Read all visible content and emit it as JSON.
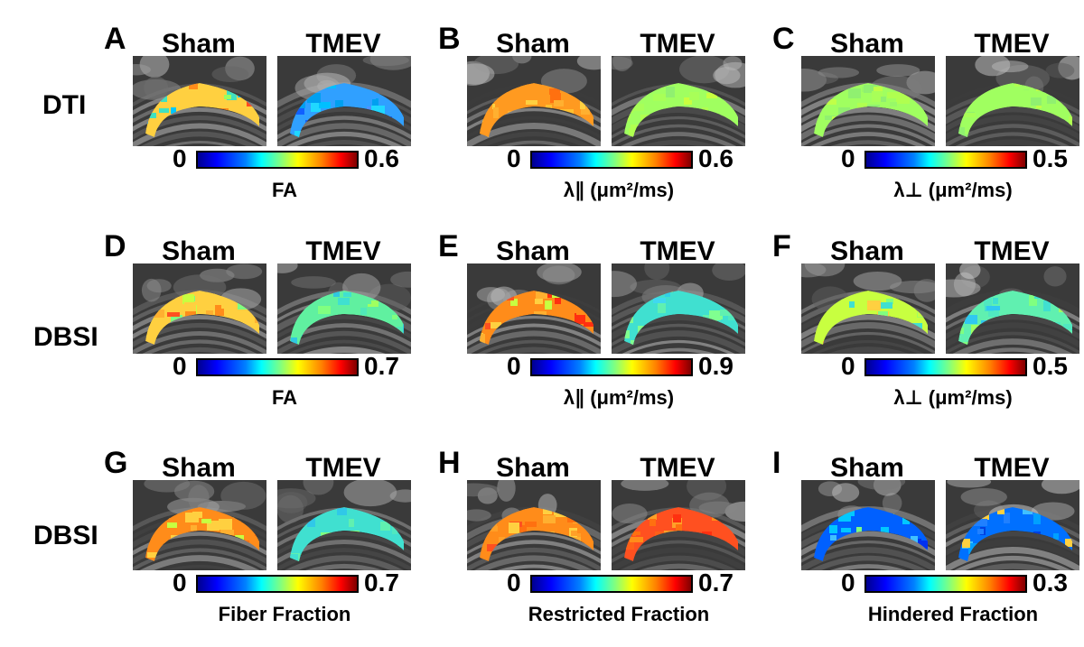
{
  "rows": [
    {
      "label": "DTI"
    },
    {
      "label": "DBSI"
    },
    {
      "label": "DBSI"
    }
  ],
  "panels": [
    {
      "letter": "A",
      "sham": "Sham",
      "tmev": "TMEV",
      "min": "0",
      "max": "0.6",
      "caption": "FA",
      "sham_colors": [
        "#ffd040",
        "#ff8c1a",
        "#9aff60",
        "#00c8ff",
        "#ff4a20",
        "#40e0c0"
      ],
      "tmev_colors": [
        "#30a0ff",
        "#00c0ff",
        "#1060ff",
        "#20d8ff",
        "#5090ff",
        "#00a0f0"
      ]
    },
    {
      "letter": "B",
      "sham": "Sham",
      "tmev": "TMEV",
      "min": "0",
      "max": "0.6",
      "caption": "λ∥ (μm²/ms)",
      "sham_colors": [
        "#ff9a20",
        "#ffb030",
        "#ff7010",
        "#ffd040",
        "#ff8c1a",
        "#ffc030"
      ],
      "tmev_colors": [
        "#a0ff60",
        "#b0ff50",
        "#90f070",
        "#c8ff40",
        "#a8ff58",
        "#98f868"
      ]
    },
    {
      "letter": "C",
      "sham": "Sham",
      "tmev": "TMEV",
      "min": "0",
      "max": "0.5",
      "caption": "λ⊥ (μm²/ms)",
      "sham_colors": [
        "#a0ff60",
        "#b0ff50",
        "#90f070",
        "#c0ff48",
        "#a8ff58",
        "#98f868"
      ],
      "tmev_colors": [
        "#a0ff60",
        "#b0ff50",
        "#90f070",
        "#c0ff48",
        "#a8ff58",
        "#98f868"
      ]
    },
    {
      "letter": "D",
      "sham": "Sham",
      "tmev": "TMEV",
      "min": "0",
      "max": "0.7",
      "caption": "FA",
      "sham_colors": [
        "#ffd040",
        "#ff8c1a",
        "#c8ff40",
        "#ff5020",
        "#ffb030",
        "#80ff80"
      ],
      "tmev_colors": [
        "#60f0a0",
        "#40e0d0",
        "#80ff80",
        "#30c8e0",
        "#a0ff60",
        "#50e8b8"
      ]
    },
    {
      "letter": "E",
      "sham": "Sham",
      "tmev": "TMEV",
      "min": "0",
      "max": "0.9",
      "caption": "λ∥ (μm²/ms)",
      "sham_colors": [
        "#ff8c1a",
        "#ff5020",
        "#ffd040",
        "#c8ff40",
        "#ff3010",
        "#ffb030"
      ],
      "tmev_colors": [
        "#40e0d0",
        "#60f0b0",
        "#30d0e8",
        "#80ff90",
        "#50e8c0",
        "#40d8f0"
      ]
    },
    {
      "letter": "F",
      "sham": "Sham",
      "tmev": "TMEV",
      "min": "0",
      "max": "0.5",
      "caption": "λ⊥ (μm²/ms)",
      "sham_colors": [
        "#c8ff40",
        "#ffd040",
        "#80ff80",
        "#40e0d0",
        "#ffb030",
        "#a0ff60"
      ],
      "tmev_colors": [
        "#60f0b0",
        "#40e0d0",
        "#80ff80",
        "#30c8f0",
        "#a0ff60",
        "#50e8c0"
      ]
    },
    {
      "letter": "G",
      "sham": "Sham",
      "tmev": "TMEV",
      "min": "0",
      "max": "0.7",
      "caption": "Fiber Fraction",
      "sham_colors": [
        "#ff8c1a",
        "#ffb030",
        "#ff5020",
        "#ffd040",
        "#ff7010",
        "#c8ff40"
      ],
      "tmev_colors": [
        "#40e0d0",
        "#60f0b0",
        "#80ff80",
        "#30c8e8",
        "#a0ff60",
        "#50e8c0"
      ]
    },
    {
      "letter": "H",
      "sham": "Sham",
      "tmev": "TMEV",
      "min": "0",
      "max": "0.7",
      "caption": "Restricted Fraction",
      "sham_colors": [
        "#ff8c1a",
        "#ffb030",
        "#ff5020",
        "#ffd040",
        "#ff7010",
        "#ffa028"
      ],
      "tmev_colors": [
        "#ff5020",
        "#ff7010",
        "#ff3010",
        "#ff8c1a",
        "#ff6018",
        "#ffa028"
      ]
    },
    {
      "letter": "I",
      "sham": "Sham",
      "tmev": "TMEV",
      "min": "0",
      "max": "0.3",
      "caption": "Hindered Fraction",
      "sham_colors": [
        "#0060ff",
        "#0090ff",
        "#0030f0",
        "#40c0ff",
        "#00c8ff",
        "#80ff80"
      ],
      "tmev_colors": [
        "#0070ff",
        "#0040e0",
        "#40c0ff",
        "#ffd040",
        "#00a0ff",
        "#2080ff"
      ]
    }
  ]
}
